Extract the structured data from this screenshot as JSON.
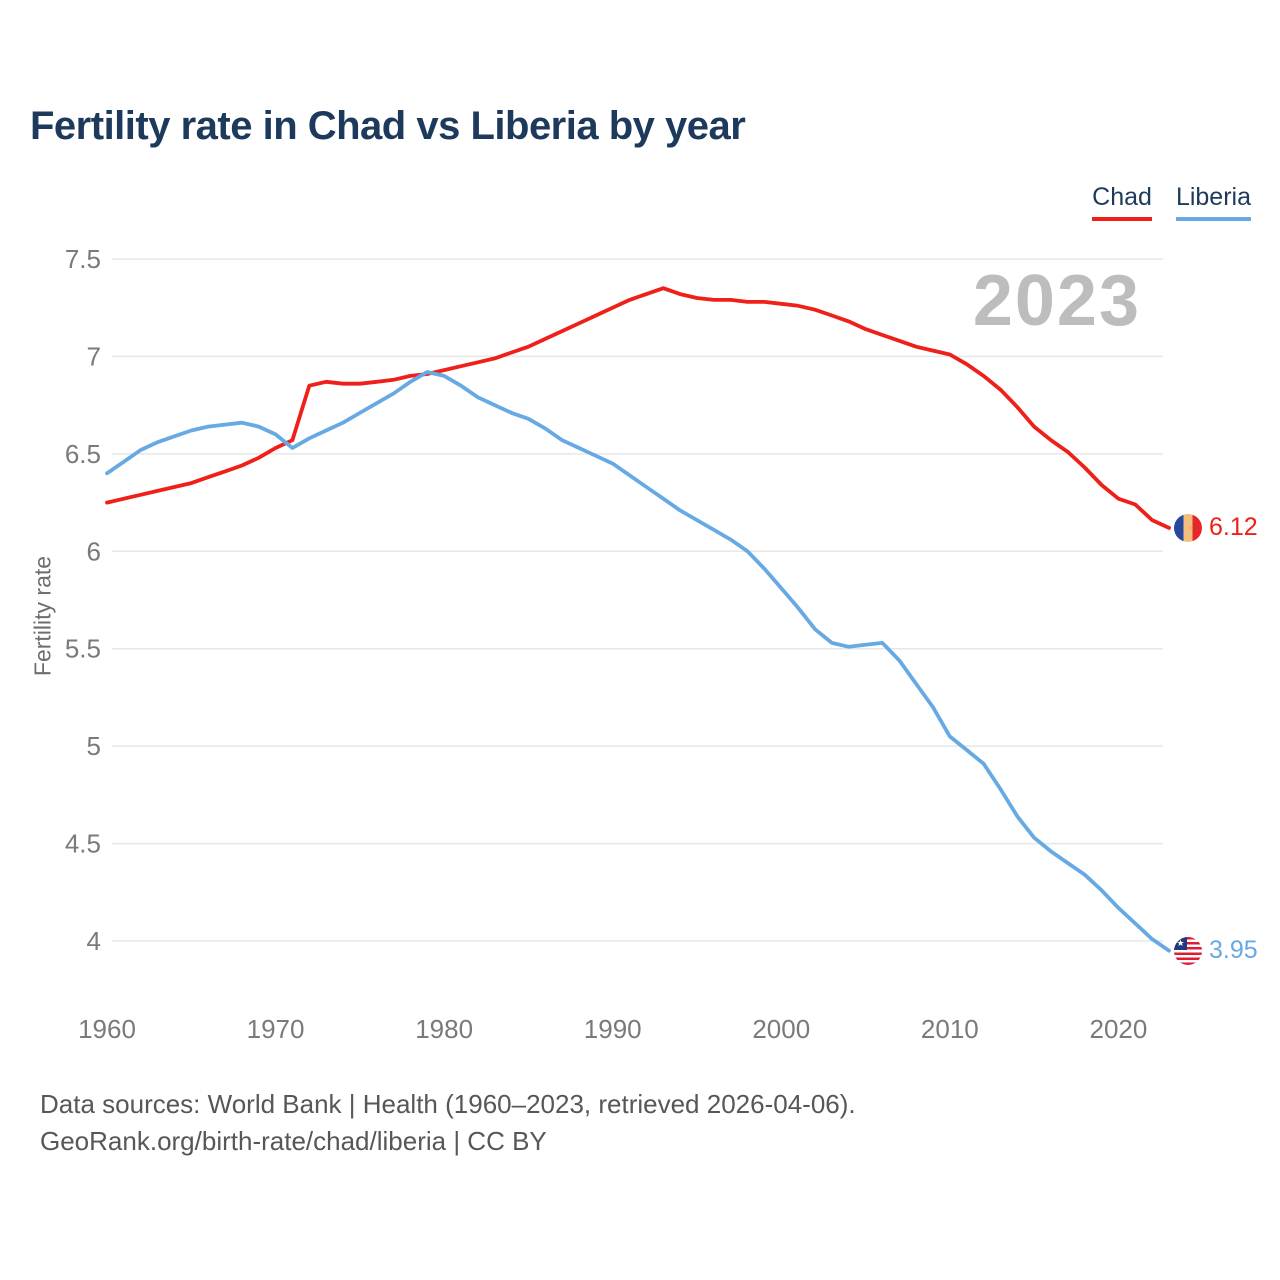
{
  "header": {
    "title": "Fertility rate in Chad vs Liberia by year"
  },
  "legend": [
    {
      "label": "Chad",
      "color": "#ee2019"
    },
    {
      "label": "Liberia",
      "color": "#67a9e3"
    }
  ],
  "icons": {
    "chad_flag": "chad-flag-icon (blue/gold/red vertical tricolor circle)",
    "liberia_flag": "liberia-flag-icon (red/white stripes, blue canton with star)"
  },
  "chart_data": {
    "type": "line",
    "title": "Fertility rate in Chad vs Liberia by year",
    "xlabel": "",
    "ylabel": "Fertility rate",
    "watermark": "2023",
    "grid": "horizontal",
    "legend_position": "top-right",
    "ylim": [
      4.0,
      7.5
    ],
    "yticks": [
      7.5,
      7,
      6.5,
      6,
      5.5,
      5,
      4.5,
      4
    ],
    "xticks": [
      1960,
      1970,
      1980,
      1990,
      2000,
      2010,
      2020
    ],
    "years": [
      1960,
      1961,
      1962,
      1963,
      1964,
      1965,
      1966,
      1967,
      1968,
      1969,
      1970,
      1971,
      1972,
      1973,
      1974,
      1975,
      1976,
      1977,
      1978,
      1979,
      1980,
      1981,
      1982,
      1983,
      1984,
      1985,
      1986,
      1987,
      1988,
      1989,
      1990,
      1991,
      1992,
      1993,
      1994,
      1995,
      1996,
      1997,
      1998,
      1999,
      2000,
      2001,
      2002,
      2003,
      2004,
      2005,
      2006,
      2007,
      2008,
      2009,
      2010,
      2011,
      2012,
      2013,
      2014,
      2015,
      2016,
      2017,
      2018,
      2019,
      2020,
      2021,
      2022,
      2023
    ],
    "series": [
      {
        "name": "Chad",
        "color": "#ee2019",
        "end_label": "6.12",
        "values": [
          6.25,
          6.27,
          6.29,
          6.31,
          6.33,
          6.35,
          6.38,
          6.41,
          6.44,
          6.48,
          6.53,
          6.57,
          6.85,
          6.87,
          6.86,
          6.86,
          6.87,
          6.88,
          6.9,
          6.91,
          6.93,
          6.95,
          6.97,
          6.99,
          7.02,
          7.05,
          7.09,
          7.13,
          7.17,
          7.21,
          7.25,
          7.29,
          7.32,
          7.35,
          7.32,
          7.3,
          7.29,
          7.29,
          7.28,
          7.28,
          7.27,
          7.26,
          7.24,
          7.21,
          7.18,
          7.14,
          7.11,
          7.08,
          7.05,
          7.03,
          7.01,
          6.96,
          6.9,
          6.83,
          6.74,
          6.64,
          6.57,
          6.51,
          6.43,
          6.34,
          6.27,
          6.24,
          6.16,
          6.12
        ]
      },
      {
        "name": "Liberia",
        "color": "#67a9e3",
        "end_label": "3.95",
        "values": [
          6.4,
          6.46,
          6.52,
          6.56,
          6.59,
          6.62,
          6.64,
          6.65,
          6.66,
          6.64,
          6.6,
          6.53,
          6.58,
          6.62,
          6.66,
          6.71,
          6.76,
          6.81,
          6.87,
          6.92,
          6.9,
          6.85,
          6.79,
          6.75,
          6.71,
          6.68,
          6.63,
          6.57,
          6.53,
          6.49,
          6.45,
          6.39,
          6.33,
          6.27,
          6.21,
          6.16,
          6.11,
          6.06,
          6.0,
          5.91,
          5.81,
          5.71,
          5.6,
          5.53,
          5.51,
          5.52,
          5.53,
          5.44,
          5.32,
          5.2,
          5.05,
          4.98,
          4.91,
          4.78,
          4.64,
          4.53,
          4.46,
          4.4,
          4.34,
          4.26,
          4.17,
          4.09,
          4.01,
          3.95
        ]
      }
    ]
  },
  "footer": {
    "line1": "Data sources: World Bank | Health (1960–2023, retrieved 2026-04-06).",
    "line2": "GeoRank.org/birth-rate/chad/liberia | CC BY"
  }
}
